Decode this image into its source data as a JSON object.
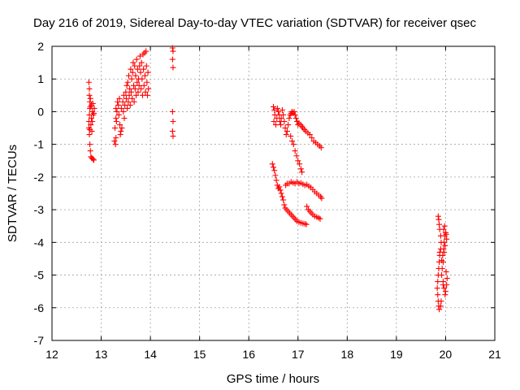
{
  "chart_data": {
    "type": "scatter",
    "title": "Day 216 of 2019, Sidereal Day-to-day VTEC variation (SDTVAR) for receiver qsec",
    "xlabel": "GPS time / hours",
    "ylabel": "SDTVAR / TECUs",
    "xlim": [
      12,
      21
    ],
    "ylim": [
      -7,
      2
    ],
    "xticks": [
      "12",
      "13",
      "14",
      "15",
      "16",
      "17",
      "18",
      "19",
      "20",
      "21"
    ],
    "yticks": [
      "2",
      "1",
      "0",
      "-1",
      "-2",
      "-3",
      "-4",
      "-5",
      "-6",
      "-7"
    ],
    "grid": true,
    "marker": "plus",
    "color": "#ff0000",
    "series": [
      {
        "name": "SDTVAR",
        "points": [
          [
            12.75,
            0.9
          ],
          [
            12.76,
            0.7
          ],
          [
            12.76,
            0.5
          ],
          [
            12.77,
            0.3
          ],
          [
            12.77,
            0.1
          ],
          [
            12.76,
            -0.1
          ],
          [
            12.75,
            -0.3
          ],
          [
            12.75,
            -0.5
          ],
          [
            12.76,
            -0.7
          ],
          [
            12.77,
            -1.0
          ],
          [
            12.78,
            -1.2
          ],
          [
            12.79,
            -1.38
          ],
          [
            12.81,
            -1.42
          ],
          [
            12.83,
            -1.45
          ],
          [
            12.85,
            -1.48
          ],
          [
            12.78,
            0.4
          ],
          [
            12.8,
            0.2
          ],
          [
            12.82,
            0.0
          ],
          [
            12.84,
            -0.1
          ],
          [
            12.8,
            -0.2
          ],
          [
            12.79,
            -0.4
          ],
          [
            12.81,
            -0.6
          ],
          [
            12.78,
            0.15
          ],
          [
            12.83,
            0.25
          ],
          [
            12.86,
            0.1
          ],
          [
            12.85,
            -0.05
          ],
          [
            12.77,
            -0.55
          ],
          [
            12.82,
            -0.3
          ],
          [
            13.27,
            -0.9
          ],
          [
            13.29,
            -1.0
          ],
          [
            13.3,
            -0.8
          ],
          [
            13.28,
            -0.5
          ],
          [
            13.3,
            -0.2
          ],
          [
            13.32,
            0.0
          ],
          [
            13.31,
            -0.3
          ],
          [
            13.3,
            0.1
          ],
          [
            13.33,
            0.3
          ],
          [
            13.35,
            0.2
          ],
          [
            13.37,
            0.4
          ],
          [
            13.36,
            -0.1
          ],
          [
            13.38,
            -0.4
          ],
          [
            13.4,
            -0.6
          ],
          [
            13.42,
            -0.5
          ],
          [
            13.39,
            -0.7
          ],
          [
            13.41,
            0.1
          ],
          [
            13.44,
            0.3
          ],
          [
            13.46,
            0.5
          ],
          [
            13.48,
            0.2
          ],
          [
            13.45,
            0.0
          ],
          [
            13.47,
            -0.2
          ],
          [
            13.5,
            0.6
          ],
          [
            13.52,
            0.8
          ],
          [
            13.51,
            0.4
          ],
          [
            13.53,
            0.1
          ],
          [
            13.55,
            0.3
          ],
          [
            13.54,
            0.9
          ],
          [
            13.56,
            1.1
          ],
          [
            13.58,
            0.7
          ],
          [
            13.57,
            0.5
          ],
          [
            13.6,
            1.3
          ],
          [
            13.59,
            0.2
          ],
          [
            13.62,
            1.0
          ],
          [
            13.61,
            0.6
          ],
          [
            13.63,
            0.4
          ],
          [
            13.64,
            1.2
          ],
          [
            13.66,
            0.8
          ],
          [
            13.65,
            1.5
          ],
          [
            13.68,
            1.4
          ],
          [
            13.67,
            0.3
          ],
          [
            13.7,
            1.1
          ],
          [
            13.69,
            0.7
          ],
          [
            13.71,
            0.5
          ],
          [
            13.72,
            1.6
          ],
          [
            13.74,
            1.3
          ],
          [
            13.73,
            0.9
          ],
          [
            13.75,
            0.6
          ],
          [
            13.76,
            1.0
          ],
          [
            13.78,
            1.4
          ],
          [
            13.77,
            0.8
          ],
          [
            13.79,
            1.7
          ],
          [
            13.8,
            1.2
          ],
          [
            13.81,
            0.7
          ],
          [
            13.82,
            1.5
          ],
          [
            13.83,
            1.0
          ],
          [
            13.84,
            0.5
          ],
          [
            13.85,
            1.75
          ],
          [
            13.86,
            1.3
          ],
          [
            13.87,
            0.8
          ],
          [
            13.88,
            1.8
          ],
          [
            13.89,
            1.1
          ],
          [
            13.9,
            0.6
          ],
          [
            13.91,
            1.85
          ],
          [
            13.92,
            1.4
          ],
          [
            13.93,
            0.9
          ],
          [
            13.94,
            0.5
          ],
          [
            13.95,
            1.2
          ],
          [
            13.96,
            0.7
          ],
          [
            14.45,
            1.95
          ],
          [
            14.46,
            1.85
          ],
          [
            14.45,
            1.6
          ],
          [
            14.46,
            1.35
          ],
          [
            14.45,
            0.0
          ],
          [
            14.46,
            -0.3
          ],
          [
            14.45,
            -0.6
          ],
          [
            14.46,
            -0.75
          ],
          [
            16.5,
            0.15
          ],
          [
            16.52,
            0.05
          ],
          [
            16.53,
            -0.1
          ],
          [
            16.51,
            -0.3
          ],
          [
            16.55,
            -0.4
          ],
          [
            16.57,
            -0.2
          ],
          [
            16.58,
            0.1
          ],
          [
            16.6,
            0.0
          ],
          [
            16.62,
            -0.1
          ],
          [
            16.63,
            -0.3
          ],
          [
            16.65,
            -0.4
          ],
          [
            16.66,
            -0.2
          ],
          [
            16.68,
            0.05
          ],
          [
            16.7,
            -0.1
          ],
          [
            16.72,
            -0.3
          ],
          [
            16.74,
            -0.5
          ],
          [
            16.76,
            -0.7
          ],
          [
            16.78,
            -0.6
          ],
          [
            16.8,
            -0.4
          ],
          [
            16.82,
            -0.2
          ],
          [
            16.84,
            -0.1
          ],
          [
            16.86,
            -0.05
          ],
          [
            16.88,
            0.0
          ],
          [
            16.9,
            -0.05
          ],
          [
            16.92,
            0.0
          ],
          [
            16.94,
            -0.1
          ],
          [
            16.96,
            -0.2
          ],
          [
            16.98,
            -0.3
          ],
          [
            17.0,
            -0.4
          ],
          [
            17.02,
            -0.35
          ],
          [
            17.05,
            -0.4
          ],
          [
            17.08,
            -0.45
          ],
          [
            17.1,
            -0.5
          ],
          [
            17.13,
            -0.55
          ],
          [
            17.16,
            -0.6
          ],
          [
            17.2,
            -0.65
          ],
          [
            17.24,
            -0.7
          ],
          [
            17.28,
            -0.8
          ],
          [
            17.32,
            -0.9
          ],
          [
            17.36,
            -0.95
          ],
          [
            17.4,
            -1.0
          ],
          [
            17.44,
            -1.05
          ],
          [
            17.47,
            -1.1
          ],
          [
            16.85,
            -0.75
          ],
          [
            16.88,
            -0.9
          ],
          [
            16.91,
            -1.0
          ],
          [
            16.94,
            -1.2
          ],
          [
            16.97,
            -1.35
          ],
          [
            17.0,
            -1.5
          ],
          [
            17.03,
            -1.6
          ],
          [
            17.06,
            -1.75
          ],
          [
            17.08,
            -1.85
          ],
          [
            16.48,
            -1.6
          ],
          [
            16.5,
            -1.7
          ],
          [
            16.52,
            -1.8
          ],
          [
            16.54,
            -1.95
          ],
          [
            16.56,
            -2.1
          ],
          [
            16.58,
            -2.25
          ],
          [
            16.6,
            -2.35
          ],
          [
            16.62,
            -2.3
          ],
          [
            16.64,
            -2.4
          ],
          [
            16.66,
            -2.5
          ],
          [
            16.68,
            -2.6
          ],
          [
            16.7,
            -2.7
          ],
          [
            16.72,
            -2.85
          ],
          [
            16.74,
            -2.95
          ],
          [
            16.77,
            -3.0
          ],
          [
            16.8,
            -3.05
          ],
          [
            16.83,
            -3.1
          ],
          [
            16.86,
            -3.15
          ],
          [
            16.89,
            -3.2
          ],
          [
            16.92,
            -3.25
          ],
          [
            16.95,
            -3.3
          ],
          [
            16.98,
            -3.35
          ],
          [
            17.02,
            -3.38
          ],
          [
            17.06,
            -3.4
          ],
          [
            17.1,
            -3.42
          ],
          [
            17.14,
            -3.43
          ],
          [
            17.17,
            -3.45
          ],
          [
            16.75,
            -2.25
          ],
          [
            16.78,
            -2.2
          ],
          [
            16.82,
            -2.2
          ],
          [
            16.86,
            -2.15
          ],
          [
            16.9,
            -2.18
          ],
          [
            16.94,
            -2.2
          ],
          [
            16.98,
            -2.15
          ],
          [
            17.02,
            -2.2
          ],
          [
            17.06,
            -2.18
          ],
          [
            17.1,
            -2.22
          ],
          [
            17.14,
            -2.25
          ],
          [
            17.18,
            -2.23
          ],
          [
            17.22,
            -2.28
          ],
          [
            17.26,
            -2.32
          ],
          [
            17.3,
            -2.38
          ],
          [
            17.34,
            -2.45
          ],
          [
            17.38,
            -2.5
          ],
          [
            17.42,
            -2.55
          ],
          [
            17.46,
            -2.6
          ],
          [
            17.48,
            -2.65
          ],
          [
            17.18,
            -2.9
          ],
          [
            17.21,
            -3.0
          ],
          [
            17.24,
            -3.05
          ],
          [
            17.27,
            -3.1
          ],
          [
            17.3,
            -3.15
          ],
          [
            17.34,
            -3.2
          ],
          [
            17.38,
            -3.22
          ],
          [
            17.42,
            -3.25
          ],
          [
            17.45,
            -3.28
          ],
          [
            19.85,
            -3.2
          ],
          [
            19.86,
            -3.3
          ],
          [
            19.87,
            -3.45
          ],
          [
            19.88,
            -3.6
          ],
          [
            19.9,
            -3.8
          ],
          [
            19.91,
            -4.0
          ],
          [
            19.9,
            -4.2
          ],
          [
            19.88,
            -4.4
          ],
          [
            19.87,
            -4.6
          ],
          [
            19.86,
            -4.8
          ],
          [
            19.85,
            -5.0
          ],
          [
            19.84,
            -5.2
          ],
          [
            19.83,
            -5.4
          ],
          [
            19.84,
            -5.6
          ],
          [
            19.85,
            -5.8
          ],
          [
            19.86,
            -5.95
          ],
          [
            19.87,
            -6.05
          ],
          [
            19.92,
            -4.55
          ],
          [
            19.94,
            -4.4
          ],
          [
            19.96,
            -4.2
          ],
          [
            19.97,
            -4.0
          ],
          [
            19.98,
            -3.8
          ],
          [
            20.0,
            -3.7
          ],
          [
            20.01,
            -3.75
          ],
          [
            20.02,
            -3.9
          ],
          [
            19.99,
            -4.1
          ],
          [
            19.97,
            -4.3
          ],
          [
            19.95,
            -4.6
          ],
          [
            19.93,
            -4.8
          ],
          [
            19.92,
            -5.0
          ],
          [
            19.95,
            -5.2
          ],
          [
            19.97,
            -5.4
          ],
          [
            19.99,
            -5.6
          ],
          [
            20.0,
            -5.5
          ],
          [
            20.02,
            -5.3
          ],
          [
            20.03,
            -5.1
          ],
          [
            20.01,
            -4.9
          ],
          [
            19.96,
            -3.6
          ],
          [
            19.98,
            -3.5
          ],
          [
            19.91,
            -5.8
          ],
          [
            19.9,
            -5.95
          ],
          [
            19.88,
            -4.3
          ],
          [
            19.95,
            -5.3
          ]
        ]
      }
    ]
  }
}
